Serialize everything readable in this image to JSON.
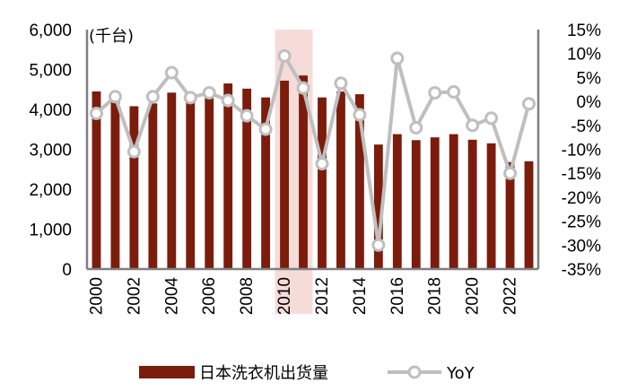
{
  "chart_data": {
    "type": "bar+line",
    "unit_label": "(千台)",
    "x": [
      2000,
      2001,
      2002,
      2003,
      2004,
      2005,
      2006,
      2007,
      2008,
      2009,
      2010,
      2011,
      2012,
      2013,
      2014,
      2015,
      2016,
      2017,
      2018,
      2019,
      2020,
      2021,
      2022,
      2023
    ],
    "x_tick_labels": [
      "2000",
      "2002",
      "2004",
      "2006",
      "2008",
      "2010",
      "2012",
      "2014",
      "2016",
      "2018",
      "2020",
      "2022"
    ],
    "series": [
      {
        "name": "日本洗衣机出货量",
        "type": "bar",
        "axis": "left",
        "color": "#7b1c0d",
        "values": [
          4450,
          4300,
          4080,
          4150,
          4420,
          4250,
          4380,
          4650,
          4520,
          4300,
          4720,
          4850,
          4300,
          4450,
          4380,
          3120,
          3380,
          3230,
          3300,
          3380,
          3240,
          3150,
          2680,
          2700
        ]
      },
      {
        "name": "YoY",
        "type": "line",
        "axis": "right",
        "color": "#bfbfbf",
        "values": [
          -2.5,
          1.0,
          -10.5,
          1.0,
          6.0,
          0.8,
          1.8,
          0.2,
          -3.0,
          -5.8,
          9.5,
          2.8,
          -13.0,
          3.8,
          -2.8,
          -30.0,
          9.0,
          -5.5,
          1.8,
          2.0,
          -5.0,
          -3.5,
          -15.0,
          -0.5
        ]
      }
    ],
    "y_left": {
      "min": 0,
      "max": 6000,
      "ticks": [
        0,
        1000,
        2000,
        3000,
        4000,
        5000,
        6000
      ],
      "tick_labels": [
        "0",
        "1,000",
        "2,000",
        "3,000",
        "4,000",
        "5,000",
        "6,000"
      ]
    },
    "y_right": {
      "min": -35,
      "max": 15,
      "ticks": [
        -35,
        -30,
        -25,
        -20,
        -15,
        -10,
        -5,
        0,
        5,
        10,
        15
      ],
      "tick_labels": [
        "-35%",
        "-30%",
        "-25%",
        "-20%",
        "-15%",
        "-10%",
        "-5%",
        "0%",
        "5%",
        "10%",
        "15%"
      ]
    },
    "highlight": {
      "x_from": 2010,
      "x_to": 2011,
      "color": "#f6dcd9"
    },
    "legend": {
      "position": "bottom"
    },
    "grid": false
  }
}
